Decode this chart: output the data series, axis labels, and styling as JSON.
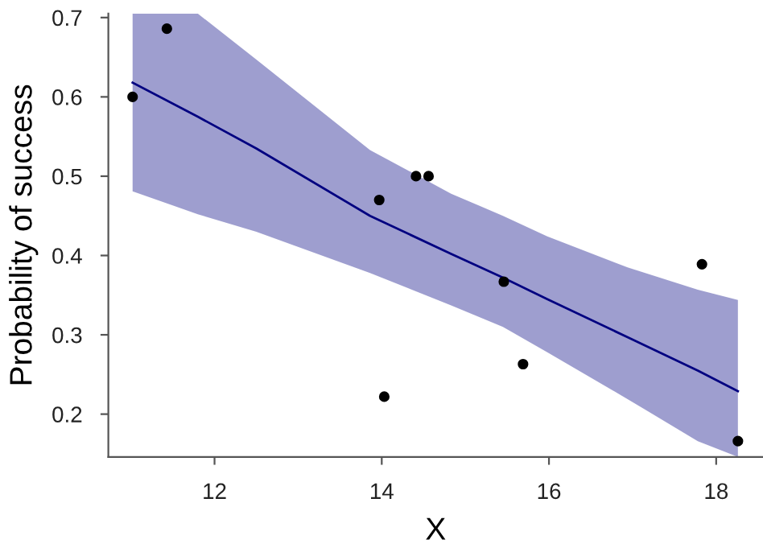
{
  "chart_data": {
    "type": "scatter",
    "xlabel": "X",
    "ylabel": "Probability of success",
    "xlim": [
      10.73,
      18.56
    ],
    "ylim": [
      0.146,
      0.705
    ],
    "xticks": [
      12,
      14,
      16,
      18
    ],
    "yticks": [
      0.2,
      0.3,
      0.4,
      0.5,
      0.6,
      0.7
    ],
    "grid": false,
    "legend": false,
    "series": [
      {
        "type": "line",
        "color": "#000080",
        "line_style": "solid",
        "marker": "none",
        "x": [
          11.02,
          11.8,
          12.5,
          13.86,
          14.83,
          15.45,
          15.98,
          16.94,
          17.78,
          18.26
        ],
        "values": [
          0.618,
          0.575,
          0.535,
          0.45,
          0.402,
          0.372,
          0.345,
          0.297,
          0.255,
          0.229
        ],
        "upper": [
          0.705,
          0.705,
          0.647,
          0.533,
          0.478,
          0.45,
          0.424,
          0.385,
          0.357,
          0.344
        ],
        "lower": [
          0.481,
          0.452,
          0.43,
          0.378,
          0.337,
          0.31,
          0.278,
          0.219,
          0.166,
          0.146
        ]
      },
      {
        "type": "scatter",
        "color": "#000000",
        "marker": "circle",
        "x": [
          11.02,
          11.43,
          13.97,
          14.03,
          14.41,
          14.56,
          15.46,
          15.69,
          17.83,
          18.26
        ],
        "values": [
          0.6,
          0.686,
          0.47,
          0.222,
          0.5,
          0.5,
          0.367,
          0.263,
          0.389,
          0.166
        ]
      }
    ]
  }
}
